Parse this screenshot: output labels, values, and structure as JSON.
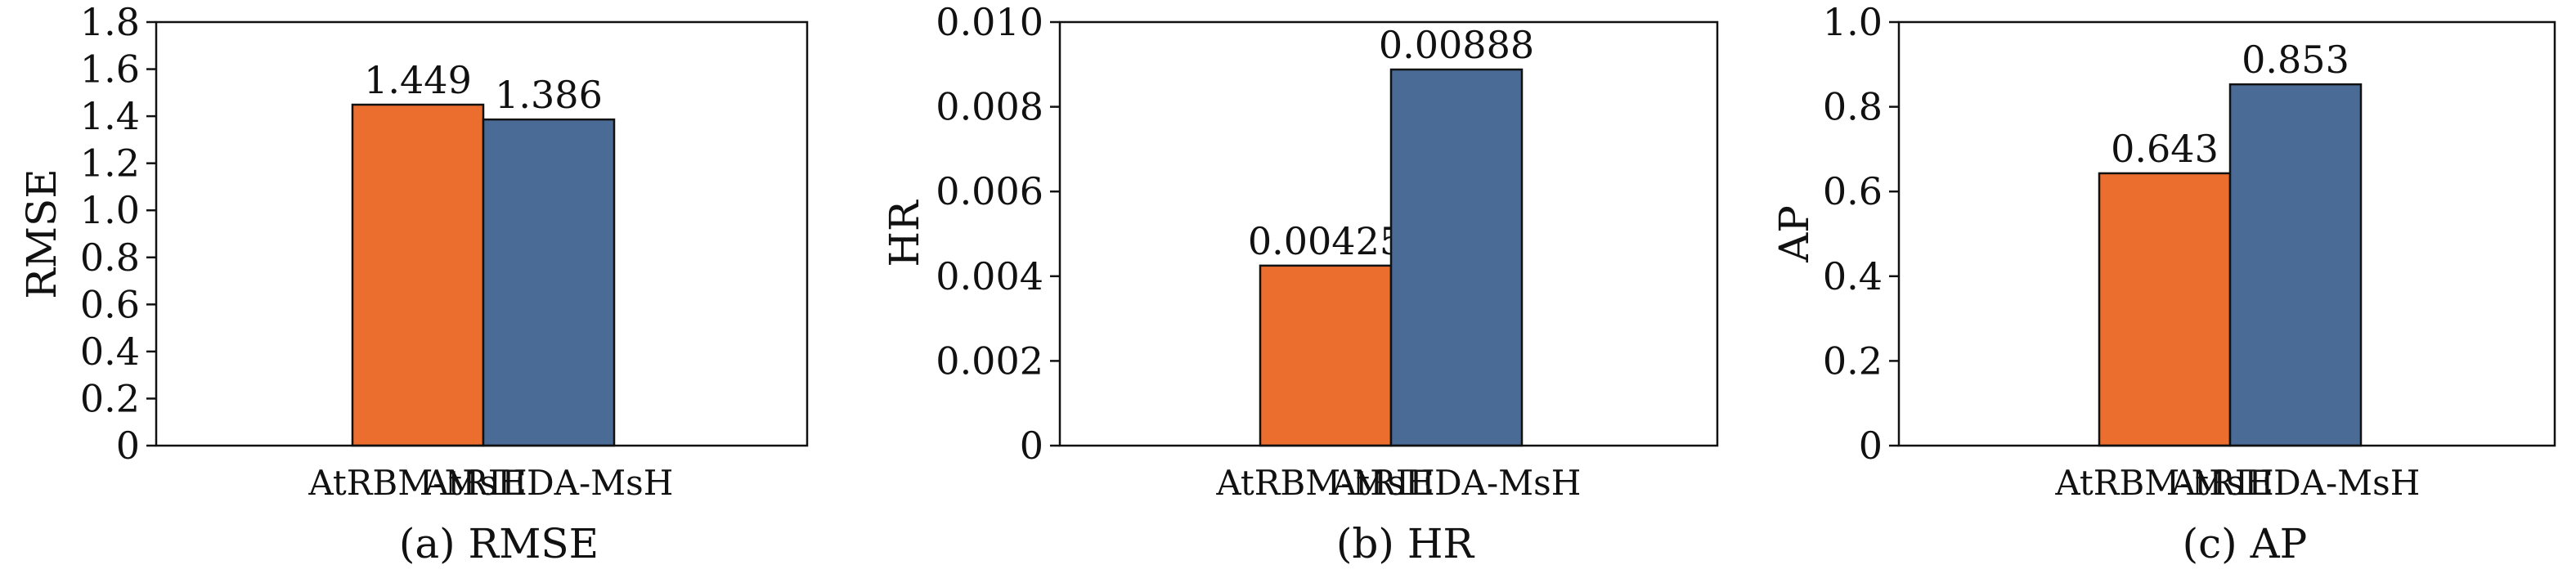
{
  "colors": {
    "series_a": "#eb6e2f",
    "series_b": "#4a6b96",
    "edge": "#111111"
  },
  "chart_data": [
    {
      "type": "bar",
      "caption": "(a) RMSE",
      "ylabel": "RMSE",
      "ylim": [
        0,
        1.8
      ],
      "yticks": [
        "0",
        "0.2",
        "0.4",
        "0.6",
        "0.8",
        "1.0",
        "1.2",
        "1.4",
        "1.6",
        "1.8"
      ],
      "categories": [
        "AtRBM-MsH",
        "AtRIEDA-MsH"
      ],
      "values": [
        1.449,
        1.386
      ],
      "value_labels": [
        "1.449",
        "1.386"
      ],
      "grid": false
    },
    {
      "type": "bar",
      "caption": "(b) HR",
      "ylabel": "HR",
      "ylim": [
        0,
        0.01
      ],
      "yticks": [
        "0",
        "0.002",
        "0.004",
        "0.006",
        "0.008",
        "0.010"
      ],
      "categories": [
        "AtRBM-MsH",
        "AtRIEDA-MsH"
      ],
      "values": [
        0.00425,
        0.00888
      ],
      "value_labels": [
        "0.00425",
        "0.00888"
      ],
      "grid": false
    },
    {
      "type": "bar",
      "caption": "(c) AP",
      "ylabel": "AP",
      "ylim": [
        0,
        1.0
      ],
      "yticks": [
        "0",
        "0.2",
        "0.4",
        "0.6",
        "0.8",
        "1.0"
      ],
      "categories": [
        "AtRBM-MsH",
        "AtRIEDA-MsH"
      ],
      "values": [
        0.643,
        0.853
      ],
      "value_labels": [
        "0.643",
        "0.853"
      ],
      "grid": false
    }
  ]
}
